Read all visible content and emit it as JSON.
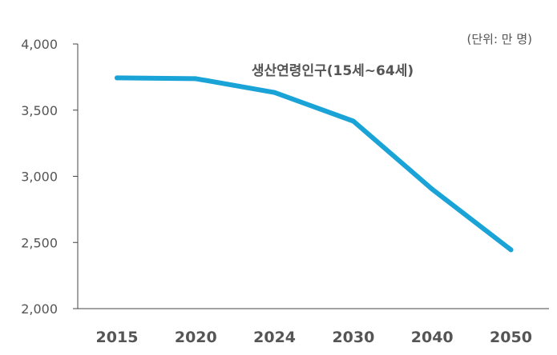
{
  "chart_data": {
    "type": "line",
    "unit_note": "(단위: 만 명)",
    "categories": [
      "2015",
      "2020",
      "2024",
      "2030",
      "2040",
      "2050"
    ],
    "series": [
      {
        "name": "생산연령인구(15세~64세)",
        "values": [
          3744,
          3738,
          3633,
          3417,
          2903,
          2445
        ],
        "color": "#1AA3D6"
      }
    ],
    "y_ticks": [
      "4,000",
      "3,500",
      "3,000",
      "2,500",
      "2,000"
    ],
    "y_tick_values": [
      4000,
      3500,
      3000,
      2500,
      2000
    ],
    "ylim": [
      2000,
      4000
    ],
    "grid": false
  }
}
